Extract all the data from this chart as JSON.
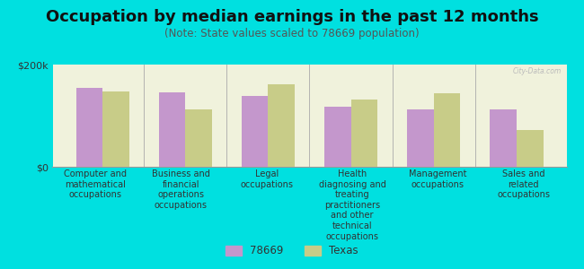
{
  "title": "Occupation by median earnings in the past 12 months",
  "subtitle": "(Note: State values scaled to 78669 population)",
  "background_color": "#00e0e0",
  "plot_bg_color": "#f0f2dc",
  "categories": [
    "Computer and\nmathematical\noccupations",
    "Business and\nfinancial\noperations\noccupations",
    "Legal\noccupations",
    "Health\ndiagnosing and\ntreating\npractitioners\nand other\ntechnical\noccupations",
    "Management\noccupations",
    "Sales and\nrelated\noccupations"
  ],
  "values_78669": [
    155000,
    145000,
    138000,
    118000,
    112000,
    112000
  ],
  "values_texas": [
    148000,
    112000,
    162000,
    132000,
    143000,
    72000
  ],
  "color_78669": "#c497cc",
  "color_texas": "#c8cc88",
  "ylim": [
    0,
    200000
  ],
  "yticks": [
    0,
    200000
  ],
  "ytick_labels": [
    "$0",
    "$200k"
  ],
  "bar_width": 0.32,
  "legend_labels": [
    "78669",
    "Texas"
  ],
  "title_fontsize": 13,
  "subtitle_fontsize": 8.5,
  "ytick_fontsize": 8,
  "label_fontsize": 7,
  "legend_fontsize": 8.5,
  "watermark": "City-Data.com"
}
